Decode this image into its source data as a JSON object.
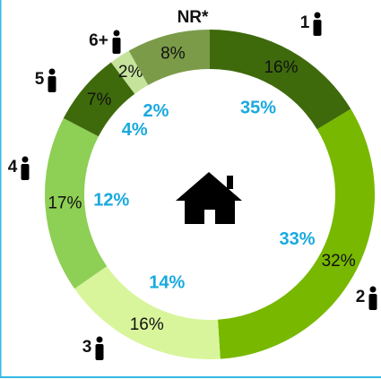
{
  "chart_data": {
    "type": "donut",
    "categories": [
      "1",
      "2",
      "3",
      "4",
      "5",
      "6+",
      "NR*"
    ],
    "colors": [
      "#3e6a0b",
      "#78b800",
      "#d8f59b",
      "#8ecf55",
      "#3e6a0b",
      "#c6e39c",
      "#7b9b49"
    ],
    "series": [
      {
        "values": [
          16,
          32,
          16,
          17,
          7,
          2,
          8
        ],
        "value_labels": [
          "16%",
          "32%",
          "16%",
          "17%",
          "7%",
          "2%",
          "8%"
        ]
      },
      {
        "color": "#19a9de",
        "values": [
          35,
          33,
          14,
          12,
          4,
          2,
          null
        ],
        "value_labels": [
          "35%",
          "33%",
          "14%",
          "12%",
          "4%",
          "2%",
          null
        ]
      }
    ]
  }
}
